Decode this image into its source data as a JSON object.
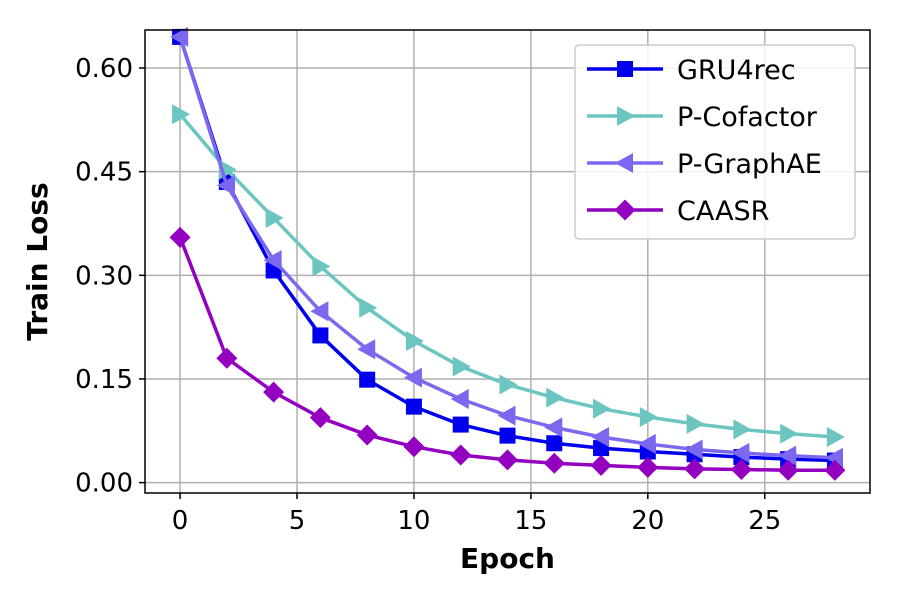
{
  "chart_data": {
    "type": "line",
    "title": "",
    "xlabel": "Epoch",
    "ylabel": "Train Loss",
    "xlim": [
      -1.5,
      29.5
    ],
    "ylim": [
      -0.015,
      0.655
    ],
    "xticks": [
      0,
      5,
      10,
      15,
      20,
      25
    ],
    "yticks": [
      0.0,
      0.15,
      0.3,
      0.45,
      0.6
    ],
    "ytick_labels": [
      "0.00",
      "0.15",
      "0.30",
      "0.45",
      "0.60"
    ],
    "grid": true,
    "legend_position": "top-right",
    "x": [
      0,
      2,
      4,
      6,
      8,
      10,
      12,
      14,
      16,
      18,
      20,
      22,
      24,
      26,
      28
    ],
    "series": [
      {
        "name": "GRU4rec",
        "color": "#0000ee",
        "marker": "square",
        "values": [
          0.645,
          0.435,
          0.307,
          0.213,
          0.149,
          0.11,
          0.084,
          0.068,
          0.057,
          0.05,
          0.045,
          0.041,
          0.037,
          0.034,
          0.032
        ]
      },
      {
        "name": "P-Cofactor",
        "color": "#6cc5c0",
        "marker": "triangle-right",
        "values": [
          0.533,
          0.453,
          0.383,
          0.313,
          0.253,
          0.205,
          0.168,
          0.142,
          0.123,
          0.107,
          0.095,
          0.085,
          0.077,
          0.071,
          0.066
        ]
      },
      {
        "name": "P-GraphAE",
        "color": "#7b68ee",
        "marker": "triangle-left",
        "values": [
          0.645,
          0.43,
          0.322,
          0.248,
          0.193,
          0.152,
          0.121,
          0.097,
          0.08,
          0.066,
          0.056,
          0.048,
          0.043,
          0.039,
          0.036
        ]
      },
      {
        "name": "CAASR",
        "color": "#9400c0",
        "marker": "diamond",
        "values": [
          0.355,
          0.18,
          0.131,
          0.094,
          0.069,
          0.052,
          0.04,
          0.033,
          0.028,
          0.025,
          0.022,
          0.02,
          0.019,
          0.018,
          0.018
        ]
      }
    ]
  }
}
